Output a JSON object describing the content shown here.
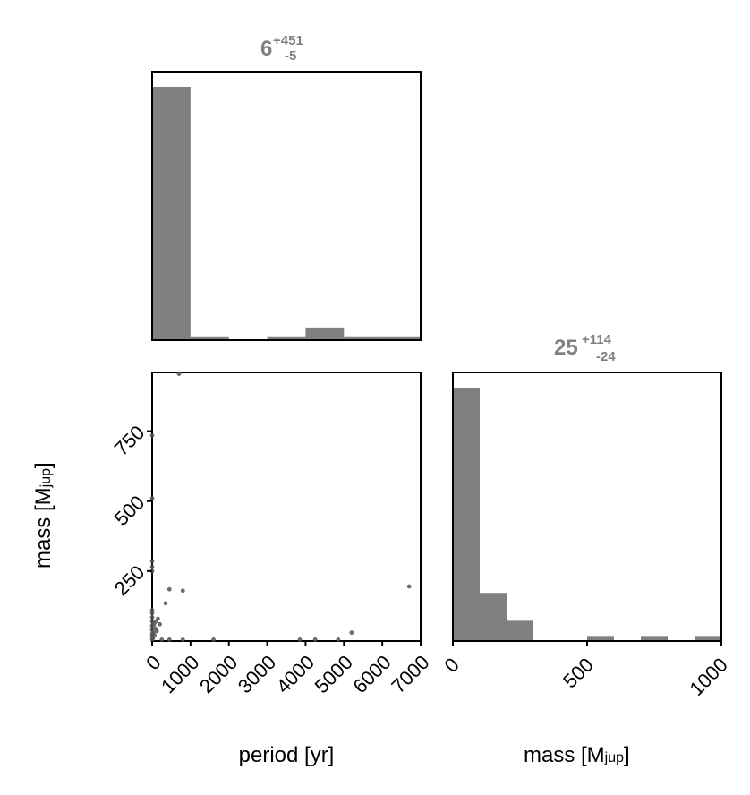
{
  "colors": {
    "hist_fill": "#808080",
    "frame": "#000000",
    "title": "#808080",
    "point": "#555555"
  },
  "chart_data": [
    {
      "type": "bar",
      "panel": "period-histogram",
      "title": {
        "median": "6",
        "plus": "+451",
        "minus": "-5"
      },
      "bins": [
        {
          "range": [
            0,
            1000
          ],
          "value": 100
        },
        {
          "range": [
            1000,
            2000
          ],
          "value": 1.5
        },
        {
          "range": [
            2000,
            3000
          ],
          "value": 0
        },
        {
          "range": [
            3000,
            4000
          ],
          "value": 1.5
        },
        {
          "range": [
            4000,
            5000
          ],
          "value": 5
        },
        {
          "range": [
            5000,
            6000
          ],
          "value": 1.5
        },
        {
          "range": [
            6000,
            7000
          ],
          "value": 1.5
        }
      ],
      "xlim": [
        0,
        7000
      ],
      "ylim": [
        0,
        106
      ]
    },
    {
      "type": "bar",
      "panel": "mass-histogram",
      "title": {
        "median": "25",
        "plus": "+114",
        "minus": "-24"
      },
      "bins": [
        {
          "range": [
            0,
            100
          ],
          "value": 100
        },
        {
          "range": [
            100,
            200
          ],
          "value": 19
        },
        {
          "range": [
            200,
            300
          ],
          "value": 8
        },
        {
          "range": [
            300,
            400
          ],
          "value": 0
        },
        {
          "range": [
            400,
            500
          ],
          "value": 0
        },
        {
          "range": [
            500,
            600
          ],
          "value": 2
        },
        {
          "range": [
            600,
            700
          ],
          "value": 0
        },
        {
          "range": [
            700,
            800
          ],
          "value": 2
        },
        {
          "range": [
            800,
            900
          ],
          "value": 0
        },
        {
          "range": [
            900,
            1000
          ],
          "value": 2
        }
      ],
      "xlim": [
        0,
        1000
      ],
      "xticks": [
        0,
        500,
        1000
      ],
      "xlabel": {
        "text": "mass [M",
        "sub": "jup",
        "close": "]"
      },
      "ylim": [
        0,
        106
      ]
    },
    {
      "type": "scatter",
      "panel": "period-mass-scatter",
      "points": [
        [
          0,
          5
        ],
        [
          0,
          15
        ],
        [
          0,
          25
        ],
        [
          0,
          40
        ],
        [
          0,
          55
        ],
        [
          0,
          70
        ],
        [
          0,
          85
        ],
        [
          0,
          100
        ],
        [
          0,
          110
        ],
        [
          0,
          250
        ],
        [
          0,
          265
        ],
        [
          0,
          285
        ],
        [
          0,
          510
        ],
        [
          0,
          735
        ],
        [
          20,
          10
        ],
        [
          30,
          30
        ],
        [
          50,
          60
        ],
        [
          60,
          20
        ],
        [
          80,
          45
        ],
        [
          100,
          70
        ],
        [
          120,
          35
        ],
        [
          150,
          80
        ],
        [
          200,
          60
        ],
        [
          250,
          5
        ],
        [
          450,
          5
        ],
        [
          800,
          5
        ],
        [
          1600,
          5
        ],
        [
          3850,
          5
        ],
        [
          4250,
          5
        ],
        [
          4850,
          5
        ],
        [
          350,
          135
        ],
        [
          450,
          185
        ],
        [
          800,
          180
        ],
        [
          5200,
          30
        ],
        [
          6700,
          195
        ],
        [
          700,
          955
        ]
      ],
      "xlim": [
        0,
        7000
      ],
      "ylim": [
        0,
        960
      ],
      "xticks": [
        0,
        1000,
        2000,
        3000,
        4000,
        5000,
        6000,
        7000
      ],
      "yticks": [
        250,
        500,
        750
      ],
      "xlabel": "period [yr]",
      "ylabel": {
        "text": "mass [M",
        "sub": "jup",
        "close": "]"
      }
    }
  ]
}
